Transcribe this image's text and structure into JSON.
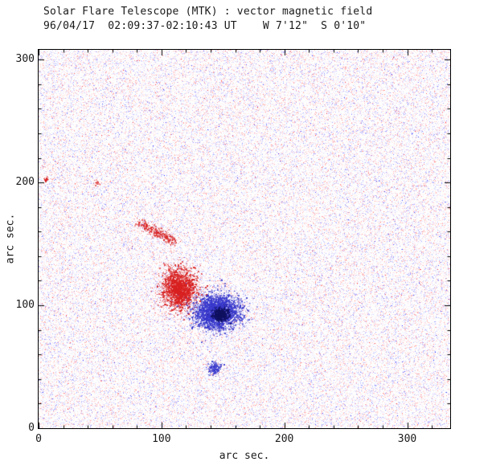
{
  "chart_data": {
    "type": "heatmap",
    "title": "Solar Flare Telescope (MTK) : vector magnetic field",
    "subtitle": "96/04/17  02:09:37-02:10:43 UT    W 7'12\"  S 0'10\"",
    "xlabel": "arc sec.",
    "ylabel": "arc sec.",
    "xlim": [
      0,
      335
    ],
    "ylim": [
      0,
      308
    ],
    "x_ticks": [
      0,
      100,
      200,
      300
    ],
    "y_ticks": [
      0,
      100,
      200,
      300
    ],
    "minor_tick_interval": 20,
    "grid": false,
    "legend": "none",
    "colors": {
      "positive": "#d82020",
      "negative": "#3838cc",
      "core": "#101060",
      "axis": "#000000",
      "background": "#ffffff"
    },
    "noise": {
      "seed": 1337,
      "density": 0.34
    },
    "features": [
      {
        "name": "upper-red-streak",
        "color": "positive",
        "line": [
          [
            82,
            168
          ],
          [
            110,
            152
          ]
        ],
        "sigma": [
          2.5,
          2
        ],
        "count": 430,
        "alpha": [
          0.25,
          0.9
        ]
      },
      {
        "name": "main-red-blob",
        "color": "positive",
        "center": [
          114,
          114
        ],
        "sigma": [
          7,
          8
        ],
        "count": 2600,
        "alpha": [
          0.3,
          1.0
        ]
      },
      {
        "name": "main-blue-blob",
        "color": "negative",
        "center": [
          145,
          95
        ],
        "sigma": [
          9,
          7
        ],
        "count": 3800,
        "alpha": [
          0.3,
          1.0
        ]
      },
      {
        "name": "blue-core",
        "color": "core",
        "center": [
          148,
          93
        ],
        "sigma": [
          3,
          2.5
        ],
        "count": 700,
        "alpha": [
          0.5,
          1.0
        ]
      },
      {
        "name": "vector-streaks",
        "color": "core",
        "center": [
          148,
          92
        ],
        "sigma": [
          2,
          2
        ],
        "count": 0,
        "streaks": 7,
        "alpha": [
          0.7,
          0.9
        ]
      },
      {
        "name": "lower-blue-spot",
        "color": "negative",
        "center": [
          143,
          49
        ],
        "sigma": [
          2.5,
          2.5
        ],
        "count": 260,
        "alpha": [
          0.3,
          0.95
        ]
      },
      {
        "name": "left-red-dot",
        "color": "positive",
        "center": [
          6,
          203
        ],
        "sigma": [
          1,
          1
        ],
        "count": 25,
        "alpha": [
          0.4,
          0.9
        ]
      },
      {
        "name": "mid-red-speck",
        "color": "positive",
        "center": [
          47,
          200
        ],
        "sigma": [
          1.2,
          1.2
        ],
        "count": 18,
        "alpha": [
          0.3,
          0.8
        ]
      }
    ]
  }
}
